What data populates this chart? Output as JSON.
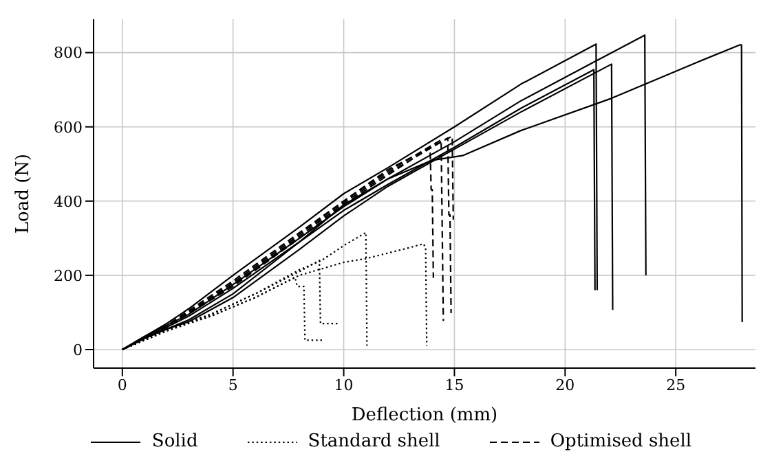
{
  "chart_data": {
    "type": "line",
    "xlabel": "Deflection (mm)",
    "ylabel": "Load (N)",
    "xlim": [
      -1.3,
      28.6
    ],
    "ylim": [
      -50,
      890
    ],
    "xticks": [
      0,
      5,
      10,
      15,
      20,
      25
    ],
    "yticks": [
      0,
      200,
      400,
      600,
      800
    ],
    "grid": true,
    "legend": "bottom",
    "series": [
      {
        "name": "Solid",
        "color": "#000000",
        "line_style": "solid",
        "x": [
          0,
          1,
          2,
          3,
          5,
          8,
          10,
          12,
          15,
          18,
          21.4,
          21.45
        ],
        "values": [
          0,
          35,
          70,
          110,
          200,
          330,
          420,
          490,
          600,
          715,
          823,
          160
        ]
      },
      {
        "color": "#000000",
        "line_style": "solid",
        "x": [
          0,
          1,
          2,
          3,
          5,
          8,
          10,
          12,
          15,
          18,
          21,
          23.6,
          23.65
        ],
        "values": [
          0,
          35,
          65,
          95,
          175,
          300,
          385,
          460,
          560,
          670,
          765,
          847,
          200
        ]
      },
      {
        "color": "#000000",
        "line_style": "solid",
        "x": [
          0,
          1,
          2,
          3,
          5,
          8,
          10,
          12,
          15,
          18,
          22.1,
          22.15
        ],
        "values": [
          0,
          30,
          55,
          75,
          140,
          270,
          360,
          440,
          540,
          640,
          769,
          107
        ]
      },
      {
        "color": "#000000",
        "line_style": "solid",
        "x": [
          0,
          1,
          2,
          3,
          5,
          8,
          10,
          12,
          14,
          15.4,
          18,
          22.1,
          26,
          27.9,
          27.97,
          28.0
        ],
        "values": [
          0,
          30,
          55,
          80,
          150,
          290,
          390,
          460,
          510,
          523,
          590,
          677,
          775,
          821,
          821,
          74
        ]
      },
      {
        "color": "#000000",
        "line_style": "solid",
        "x": [
          0,
          1,
          2,
          3,
          5,
          8,
          10,
          12,
          15,
          18,
          21.3,
          21.35
        ],
        "values": [
          0,
          32,
          60,
          90,
          165,
          290,
          375,
          445,
          545,
          650,
          754,
          160
        ]
      },
      {
        "name": "Standard shell",
        "color": "#000000",
        "line_style": "dotted",
        "x": [
          0,
          2,
          4,
          6,
          7.8,
          7.9,
          8.2,
          8.25,
          9.1
        ],
        "values": [
          0,
          50,
          90,
          140,
          195,
          170,
          170,
          25,
          25
        ]
      },
      {
        "color": "#000000",
        "line_style": "dotted",
        "x": [
          0,
          2,
          4,
          6,
          8,
          8.9,
          8.95,
          9.8
        ],
        "values": [
          0,
          50,
          95,
          150,
          210,
          240,
          70,
          70
        ]
      },
      {
        "color": "#000000",
        "line_style": "dotted",
        "x": [
          0,
          2,
          4,
          6,
          8,
          9,
          10,
          11,
          11.05
        ],
        "values": [
          0,
          55,
          95,
          150,
          215,
          240,
          280,
          315,
          10
        ]
      },
      {
        "color": "#000000",
        "line_style": "dotted",
        "x": [
          0,
          2,
          4,
          6,
          8,
          10,
          11,
          12,
          13,
          13.6,
          13.7,
          13.75
        ],
        "values": [
          0,
          55,
          90,
          140,
          200,
          235,
          245,
          260,
          275,
          285,
          275,
          10
        ]
      },
      {
        "name": "Optimised shell",
        "color": "#000000",
        "line_style": "dashed",
        "x": [
          0,
          2,
          5,
          8,
          10,
          12,
          13.9,
          13.95,
          14.0,
          14.05
        ],
        "values": [
          0,
          60,
          170,
          300,
          390,
          470,
          545,
          431,
          431,
          193
        ]
      },
      {
        "color": "#000000",
        "line_style": "dashed",
        "x": [
          0,
          2,
          5,
          8,
          10,
          12,
          14.4,
          14.5
        ],
        "values": [
          0,
          65,
          185,
          315,
          400,
          480,
          565,
          77
        ]
      },
      {
        "color": "#000000",
        "line_style": "dashed",
        "x": [
          0,
          2,
          5,
          8,
          10,
          12,
          14.7,
          14.75,
          14.8,
          14.85
        ],
        "values": [
          0,
          60,
          175,
          305,
          395,
          475,
          570,
          363,
          363,
          98
        ]
      },
      {
        "color": "#000000",
        "line_style": "dashed",
        "x": [
          0,
          2,
          5,
          8,
          10,
          12,
          14.9,
          14.95
        ],
        "values": [
          0,
          62,
          180,
          310,
          400,
          485,
          575,
          350
        ]
      }
    ]
  }
}
